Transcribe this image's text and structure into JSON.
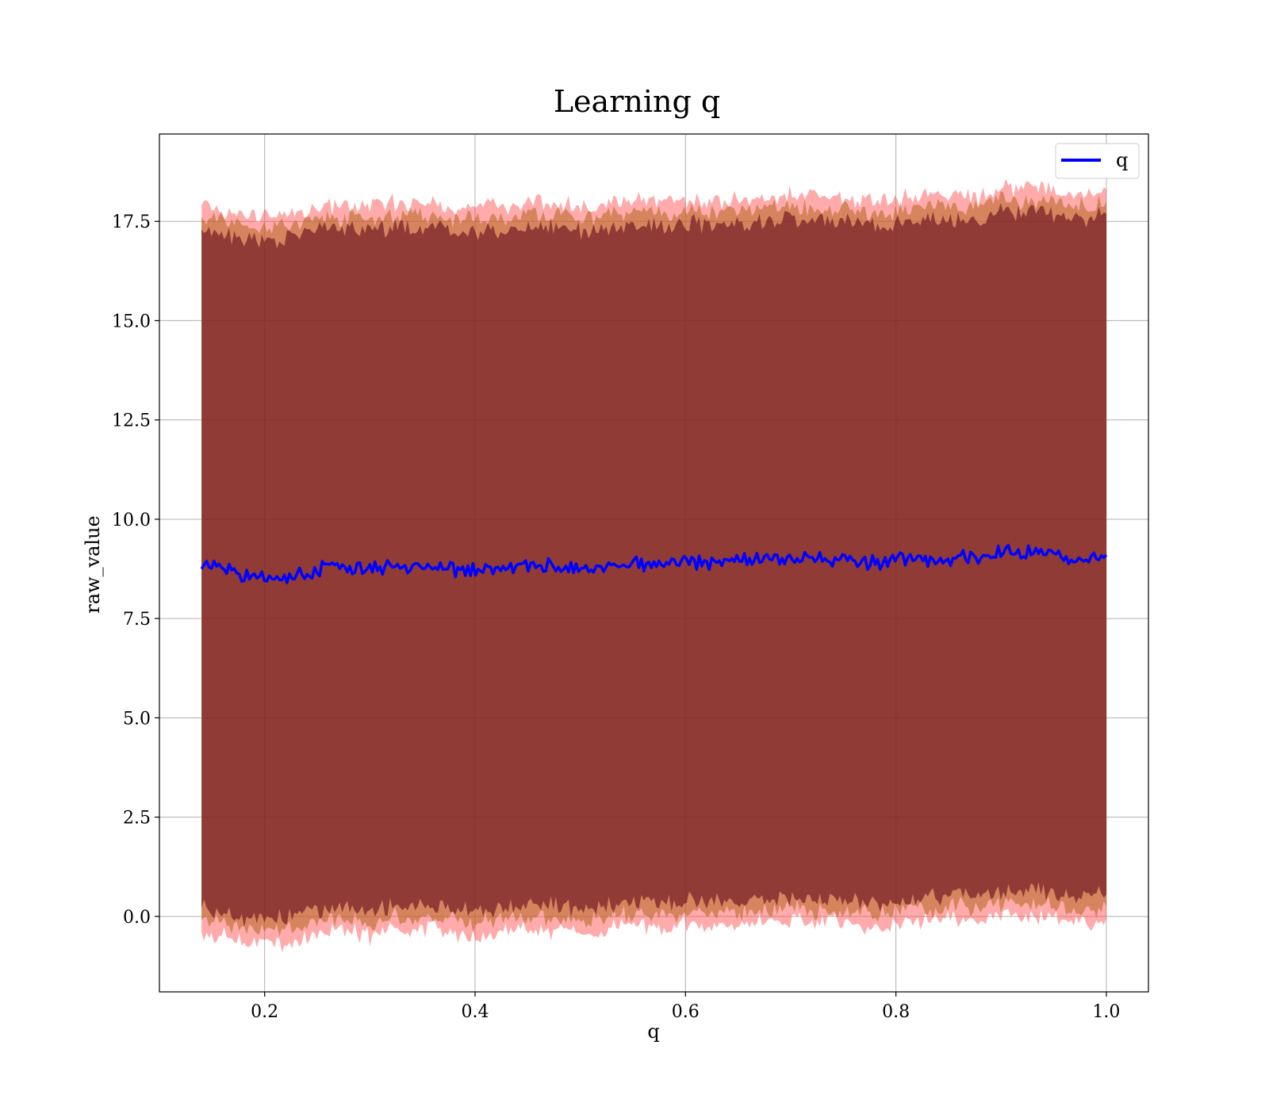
{
  "chart_data": {
    "type": "area",
    "title": "Learning q",
    "xlabel": "q",
    "ylabel": "raw_value",
    "xlim": [
      0.1,
      1.04
    ],
    "ylim": [
      -1.9,
      19.7
    ],
    "grid": true,
    "legend_position": "upper right",
    "x_ticks": [
      0.2,
      0.4,
      0.6,
      0.8,
      1.0
    ],
    "x_tick_labels": [
      "0.2",
      "0.4",
      "0.6",
      "0.8",
      "1.0"
    ],
    "y_ticks": [
      0.0,
      2.5,
      5.0,
      7.5,
      10.0,
      12.5,
      15.0,
      17.5
    ],
    "y_tick_labels": [
      "0.0",
      "2.5",
      "5.0",
      "7.5",
      "10.0",
      "12.5",
      "15.0",
      "17.5"
    ],
    "x_range": [
      0.14,
      1.0
    ],
    "colors": {
      "line": "#0000ff",
      "band_outer": "#ff4444",
      "band_inner": "#b5651d",
      "band_core": "#5a0018"
    },
    "series": [
      {
        "name": "q",
        "x": [
          0.14,
          0.16,
          0.18,
          0.2,
          0.22,
          0.24,
          0.26,
          0.28,
          0.3,
          0.32,
          0.34,
          0.36,
          0.38,
          0.4,
          0.42,
          0.44,
          0.46,
          0.48,
          0.5,
          0.52,
          0.54,
          0.56,
          0.58,
          0.6,
          0.62,
          0.64,
          0.66,
          0.68,
          0.7,
          0.72,
          0.74,
          0.76,
          0.78,
          0.8,
          0.82,
          0.84,
          0.86,
          0.88,
          0.9,
          0.92,
          0.94,
          0.96,
          0.98,
          1.0
        ],
        "values": [
          8.75,
          8.8,
          8.55,
          8.5,
          8.5,
          8.6,
          8.85,
          8.75,
          8.7,
          8.85,
          8.8,
          8.85,
          8.75,
          8.7,
          8.75,
          8.8,
          8.85,
          8.8,
          8.75,
          8.8,
          8.9,
          8.9,
          8.85,
          8.95,
          8.9,
          8.95,
          8.95,
          9.0,
          9.05,
          9.0,
          9.0,
          8.95,
          8.9,
          8.95,
          9.0,
          9.0,
          9.05,
          8.95,
          9.2,
          9.15,
          9.2,
          9.05,
          9.0,
          9.1
        ]
      }
    ],
    "bands": [
      {
        "x": [
          0.14,
          0.16,
          0.18,
          0.2,
          0.22,
          0.24,
          0.26,
          0.28,
          0.3,
          0.32,
          0.34,
          0.36,
          0.38,
          0.4,
          0.42,
          0.44,
          0.46,
          0.48,
          0.5,
          0.52,
          0.54,
          0.56,
          0.58,
          0.6,
          0.62,
          0.64,
          0.66,
          0.68,
          0.7,
          0.72,
          0.74,
          0.76,
          0.78,
          0.8,
          0.82,
          0.84,
          0.86,
          0.88,
          0.9,
          0.92,
          0.94,
          0.96,
          0.98,
          1.0
        ],
        "upper": [
          17.9,
          17.7,
          17.6,
          17.65,
          17.6,
          17.75,
          17.85,
          17.9,
          17.85,
          17.95,
          17.9,
          17.95,
          17.85,
          17.8,
          17.9,
          17.95,
          18.0,
          17.95,
          17.85,
          17.9,
          18.0,
          18.05,
          18.0,
          18.05,
          18.0,
          18.05,
          18.05,
          18.1,
          18.15,
          18.1,
          18.1,
          18.05,
          18.0,
          18.05,
          18.15,
          18.15,
          18.2,
          18.1,
          18.35,
          18.3,
          18.35,
          18.2,
          18.15,
          18.3
        ],
        "lower": [
          -0.4,
          -0.45,
          -0.6,
          -0.65,
          -0.65,
          -0.5,
          -0.35,
          -0.4,
          -0.5,
          -0.3,
          -0.35,
          -0.3,
          -0.4,
          -0.45,
          -0.4,
          -0.35,
          -0.3,
          -0.35,
          -0.4,
          -0.35,
          -0.25,
          -0.25,
          -0.3,
          -0.2,
          -0.25,
          -0.2,
          -0.2,
          -0.15,
          -0.1,
          -0.15,
          -0.15,
          -0.2,
          -0.25,
          -0.2,
          -0.1,
          -0.1,
          -0.05,
          -0.15,
          0.05,
          0.0,
          0.05,
          -0.1,
          -0.15,
          -0.05
        ]
      },
      {
        "x": [
          0.14,
          0.16,
          0.18,
          0.2,
          0.22,
          0.24,
          0.26,
          0.28,
          0.3,
          0.32,
          0.34,
          0.36,
          0.38,
          0.4,
          0.42,
          0.44,
          0.46,
          0.48,
          0.5,
          0.52,
          0.54,
          0.56,
          0.58,
          0.6,
          0.62,
          0.64,
          0.66,
          0.68,
          0.7,
          0.72,
          0.74,
          0.76,
          0.78,
          0.8,
          0.82,
          0.84,
          0.86,
          0.88,
          0.9,
          0.92,
          0.94,
          0.96,
          0.98,
          1.0
        ],
        "upper": [
          17.6,
          17.5,
          17.35,
          17.35,
          17.35,
          17.45,
          17.6,
          17.6,
          17.55,
          17.65,
          17.6,
          17.65,
          17.55,
          17.5,
          17.55,
          17.6,
          17.7,
          17.65,
          17.55,
          17.6,
          17.7,
          17.75,
          17.7,
          17.75,
          17.7,
          17.75,
          17.75,
          17.8,
          17.85,
          17.8,
          17.8,
          17.75,
          17.7,
          17.75,
          17.85,
          17.85,
          17.9,
          17.8,
          18.05,
          18.0,
          18.05,
          17.9,
          17.85,
          18.0
        ],
        "lower": [
          -0.1,
          -0.15,
          -0.3,
          -0.35,
          -0.35,
          -0.2,
          -0.05,
          -0.1,
          -0.2,
          0.0,
          -0.05,
          0.0,
          -0.1,
          -0.15,
          -0.1,
          -0.05,
          0.0,
          -0.05,
          -0.1,
          -0.05,
          0.05,
          0.05,
          0.0,
          0.1,
          0.05,
          0.1,
          0.1,
          0.15,
          0.2,
          0.15,
          0.15,
          0.1,
          0.05,
          0.1,
          0.2,
          0.2,
          0.25,
          0.15,
          0.35,
          0.3,
          0.35,
          0.2,
          0.15,
          0.25
        ]
      },
      {
        "x": [
          0.14,
          0.16,
          0.18,
          0.2,
          0.22,
          0.24,
          0.26,
          0.28,
          0.3,
          0.32,
          0.34,
          0.36,
          0.38,
          0.4,
          0.42,
          0.44,
          0.46,
          0.48,
          0.5,
          0.52,
          0.54,
          0.56,
          0.58,
          0.6,
          0.62,
          0.64,
          0.66,
          0.68,
          0.7,
          0.72,
          0.74,
          0.76,
          0.78,
          0.8,
          0.82,
          0.84,
          0.86,
          0.88,
          0.9,
          0.92,
          0.94,
          0.96,
          0.98,
          1.0
        ],
        "upper": [
          17.3,
          17.25,
          17.05,
          17.05,
          17.05,
          17.2,
          17.35,
          17.3,
          17.25,
          17.35,
          17.3,
          17.35,
          17.25,
          17.2,
          17.25,
          17.3,
          17.4,
          17.35,
          17.25,
          17.3,
          17.4,
          17.45,
          17.4,
          17.45,
          17.4,
          17.45,
          17.45,
          17.5,
          17.55,
          17.5,
          17.5,
          17.45,
          17.4,
          17.45,
          17.55,
          17.55,
          17.6,
          17.5,
          17.75,
          17.7,
          17.75,
          17.6,
          17.55,
          17.7
        ],
        "lower": [
          0.2,
          0.15,
          0.0,
          -0.05,
          -0.05,
          0.1,
          0.25,
          0.2,
          0.1,
          0.3,
          0.25,
          0.3,
          0.2,
          0.15,
          0.2,
          0.25,
          0.3,
          0.25,
          0.2,
          0.25,
          0.35,
          0.35,
          0.3,
          0.4,
          0.35,
          0.4,
          0.4,
          0.45,
          0.5,
          0.45,
          0.45,
          0.4,
          0.35,
          0.4,
          0.5,
          0.5,
          0.55,
          0.45,
          0.65,
          0.6,
          0.65,
          0.5,
          0.45,
          0.55
        ]
      }
    ]
  }
}
